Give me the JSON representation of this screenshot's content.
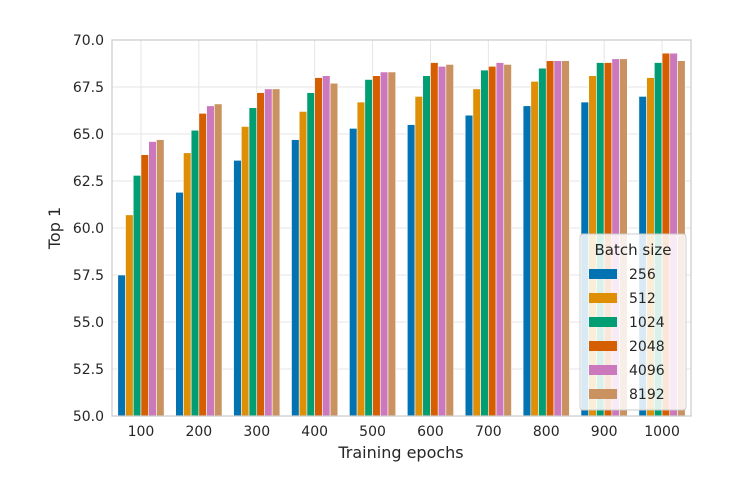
{
  "chart_data": {
    "type": "bar",
    "title": "",
    "xlabel": "Training epochs",
    "ylabel": "Top 1",
    "ylim": [
      50.0,
      70.0
    ],
    "yticks": [
      "50.0",
      "52.5",
      "55.0",
      "57.5",
      "60.0",
      "62.5",
      "65.0",
      "67.5",
      "70.0"
    ],
    "categories": [
      "100",
      "200",
      "300",
      "400",
      "500",
      "600",
      "700",
      "800",
      "900",
      "1000"
    ],
    "grid": true,
    "legend": {
      "title": "Batch size",
      "placement": "lower-right"
    },
    "series": [
      {
        "name": "256",
        "color": "#0173b2",
        "values": [
          57.5,
          61.9,
          63.6,
          64.7,
          65.3,
          65.5,
          66.0,
          66.5,
          66.7,
          67.0
        ]
      },
      {
        "name": "512",
        "color": "#de8f05",
        "values": [
          60.7,
          64.0,
          65.4,
          66.2,
          66.7,
          67.0,
          67.4,
          67.8,
          68.1,
          68.0
        ]
      },
      {
        "name": "1024",
        "color": "#029e73",
        "values": [
          62.8,
          65.2,
          66.4,
          67.2,
          67.9,
          68.1,
          68.4,
          68.5,
          68.8,
          68.8
        ]
      },
      {
        "name": "2048",
        "color": "#d55e00",
        "values": [
          63.9,
          66.1,
          67.2,
          68.0,
          68.1,
          68.8,
          68.6,
          68.9,
          68.8,
          69.3
        ]
      },
      {
        "name": "4096",
        "color": "#cc78bc",
        "values": [
          64.6,
          66.5,
          67.4,
          68.1,
          68.3,
          68.6,
          68.8,
          68.9,
          69.0,
          69.3
        ]
      },
      {
        "name": "8192",
        "color": "#ca9161",
        "values": [
          64.7,
          66.6,
          67.4,
          67.7,
          68.3,
          68.7,
          68.7,
          68.9,
          69.0,
          68.9
        ]
      }
    ]
  }
}
